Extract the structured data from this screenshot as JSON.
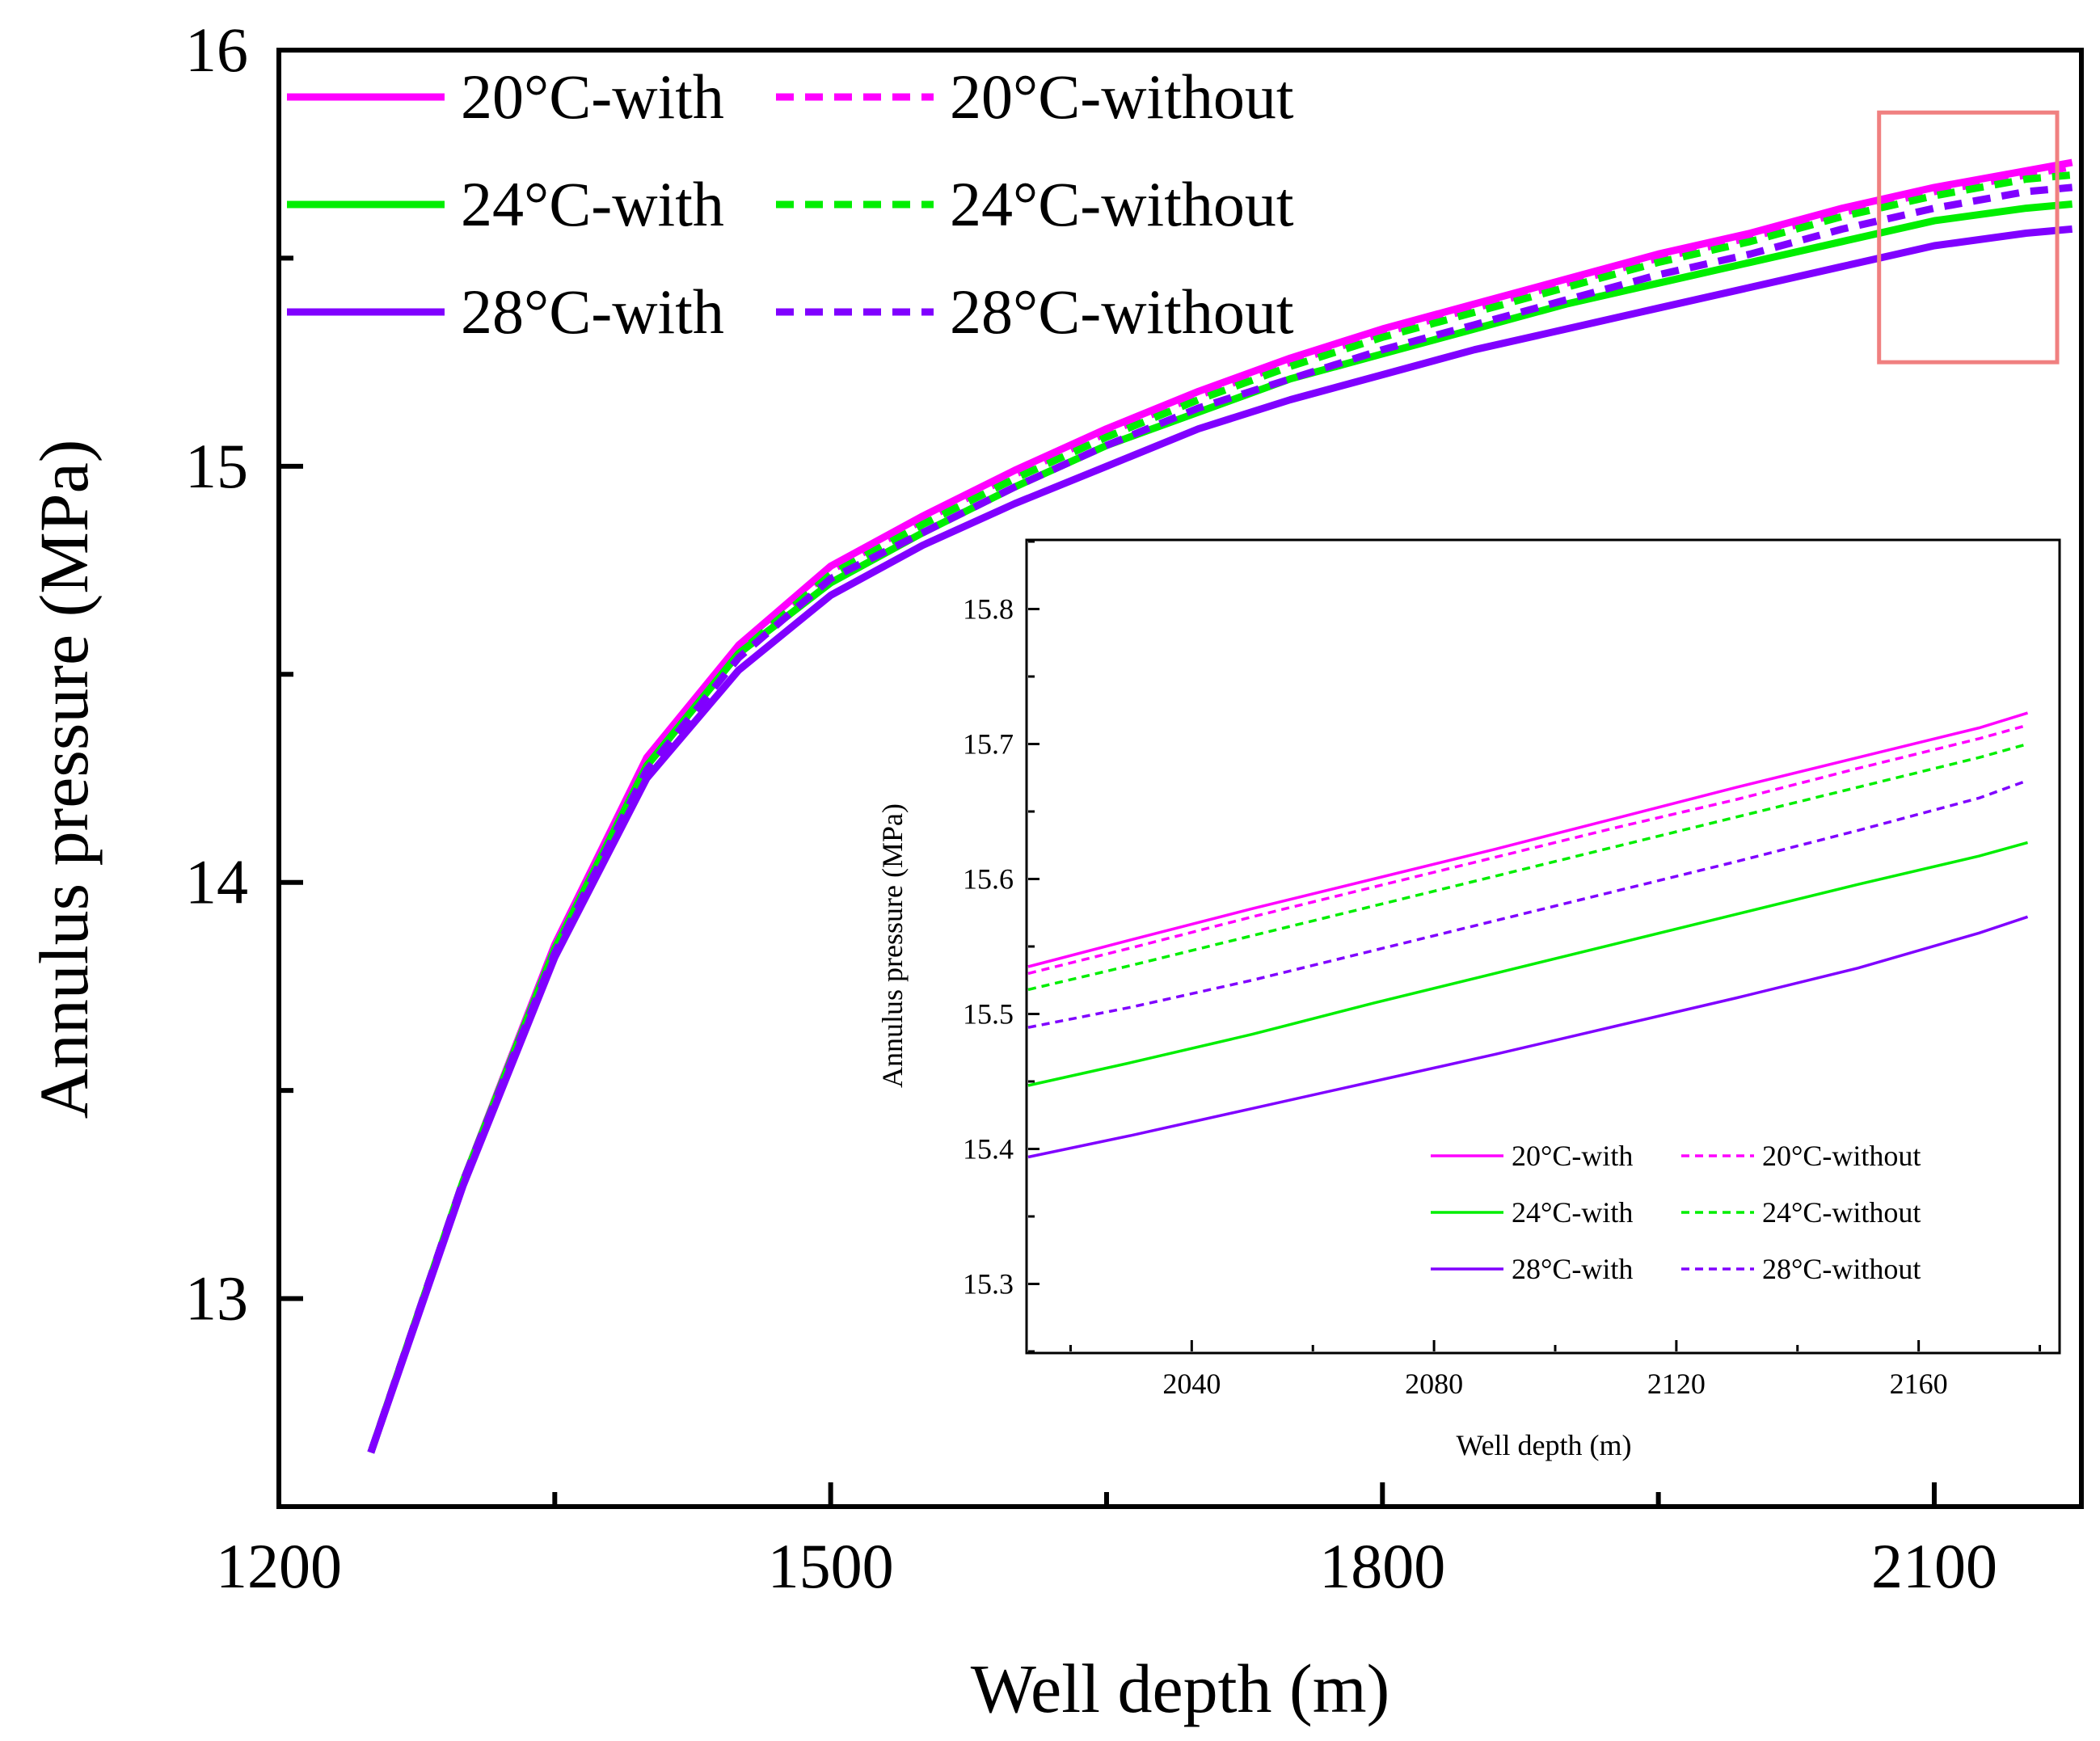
{
  "chart_data": [
    {
      "type": "line",
      "title": "",
      "xlabel": "Well depth (m)",
      "ylabel": "Annulus pressure (MPa)",
      "xlim": [
        1200,
        2180
      ],
      "ylim": [
        12.5,
        16.0
      ],
      "xticks": [
        1200,
        1500,
        1800,
        2100
      ],
      "xtick_labels": [
        "1200",
        "1500",
        "1800",
        "2100"
      ],
      "yticks": [
        13,
        14,
        15,
        16
      ],
      "ytick_labels": [
        "13",
        "14",
        "15",
        "16"
      ],
      "legend_position": "top-left",
      "x": [
        1250,
        1300,
        1350,
        1400,
        1450,
        1500,
        1550,
        1600,
        1650,
        1700,
        1750,
        1800,
        1850,
        1900,
        1950,
        2000,
        2050,
        2100,
        2150,
        2175
      ],
      "series": [
        {
          "name": "20°C-with",
          "color": "#ff00ff",
          "dash": "solid",
          "values": [
            12.63,
            13.28,
            13.85,
            14.3,
            14.57,
            14.76,
            14.88,
            14.99,
            15.09,
            15.18,
            15.26,
            15.33,
            15.39,
            15.45,
            15.51,
            15.56,
            15.62,
            15.67,
            15.71,
            15.73
          ]
        },
        {
          "name": "20°C-without",
          "color": "#ff00ff",
          "dash": "dashed",
          "values": [
            12.63,
            13.28,
            13.84,
            14.29,
            14.56,
            14.75,
            14.87,
            14.98,
            15.08,
            15.17,
            15.25,
            15.32,
            15.38,
            15.44,
            15.5,
            15.55,
            15.61,
            15.66,
            15.7,
            15.72
          ]
        },
        {
          "name": "24°C-with",
          "color": "#00ee00",
          "dash": "solid",
          "values": [
            12.63,
            13.28,
            13.84,
            14.28,
            14.55,
            14.72,
            14.84,
            14.95,
            15.05,
            15.13,
            15.21,
            15.27,
            15.33,
            15.39,
            15.44,
            15.49,
            15.54,
            15.59,
            15.62,
            15.63
          ]
        },
        {
          "name": "24°C-without",
          "color": "#00ee00",
          "dash": "dashed",
          "values": [
            12.63,
            13.28,
            13.84,
            14.28,
            14.55,
            14.74,
            14.86,
            14.97,
            15.07,
            15.16,
            15.24,
            15.31,
            15.37,
            15.43,
            15.49,
            15.54,
            15.6,
            15.65,
            15.69,
            15.7
          ]
        },
        {
          "name": "28°C-with",
          "color": "#8000ff",
          "dash": "solid",
          "values": [
            12.63,
            13.27,
            13.82,
            14.25,
            14.51,
            14.69,
            14.81,
            14.91,
            15.0,
            15.09,
            15.16,
            15.22,
            15.28,
            15.33,
            15.38,
            15.43,
            15.48,
            15.53,
            15.56,
            15.57
          ]
        },
        {
          "name": "28°C-without",
          "color": "#8000ff",
          "dash": "dashed",
          "values": [
            12.63,
            13.28,
            13.83,
            14.27,
            14.54,
            14.73,
            14.84,
            14.95,
            15.05,
            15.14,
            15.21,
            15.28,
            15.34,
            15.4,
            15.46,
            15.51,
            15.57,
            15.62,
            15.66,
            15.67
          ]
        }
      ],
      "highlight_region": {
        "x": [
          2070,
          2180
        ],
        "y": [
          15.25,
          15.85
        ],
        "color": "#f08080"
      }
    },
    {
      "type": "line",
      "title": "",
      "xlabel": "Well depth (m)",
      "ylabel": "Annulus pressure (MPa)",
      "xlim": [
        2013,
        2183
      ],
      "ylim": [
        15.25,
        15.85
      ],
      "xticks": [
        2040,
        2080,
        2120,
        2160
      ],
      "xtick_labels": [
        "2040",
        "2080",
        "2120",
        "2160"
      ],
      "yticks": [
        15.3,
        15.4,
        15.5,
        15.6,
        15.7,
        15.8
      ],
      "ytick_labels": [
        "15.3",
        "15.4",
        "15.5",
        "15.6",
        "15.7",
        "15.8"
      ],
      "legend_position": "bottom-right",
      "x": [
        2013,
        2030,
        2050,
        2070,
        2090,
        2110,
        2130,
        2150,
        2170,
        2178
      ],
      "series": [
        {
          "name": "20°C-with",
          "color": "#ff00ff",
          "dash": "solid",
          "values": [
            15.535,
            15.555,
            15.578,
            15.6,
            15.622,
            15.645,
            15.668,
            15.69,
            15.712,
            15.723
          ]
        },
        {
          "name": "20°C-without",
          "color": "#ff00ff",
          "dash": "dashed",
          "values": [
            15.53,
            15.549,
            15.572,
            15.594,
            15.616,
            15.638,
            15.659,
            15.682,
            15.704,
            15.714
          ]
        },
        {
          "name": "24°C-with",
          "color": "#00ee00",
          "dash": "solid",
          "values": [
            15.447,
            15.464,
            15.485,
            15.508,
            15.53,
            15.552,
            15.574,
            15.596,
            15.617,
            15.627
          ]
        },
        {
          "name": "24°C-without",
          "color": "#00ee00",
          "dash": "dashed",
          "values": [
            15.518,
            15.536,
            15.558,
            15.58,
            15.602,
            15.624,
            15.646,
            15.668,
            15.69,
            15.7
          ]
        },
        {
          "name": "28°C-with",
          "color": "#8000ff",
          "dash": "solid",
          "values": [
            15.394,
            15.41,
            15.43,
            15.45,
            15.47,
            15.491,
            15.512,
            15.534,
            15.56,
            15.572
          ]
        },
        {
          "name": "28°C-without",
          "color": "#8000ff",
          "dash": "dashed",
          "values": [
            15.49,
            15.505,
            15.525,
            15.547,
            15.569,
            15.591,
            15.613,
            15.636,
            15.66,
            15.673
          ]
        }
      ]
    }
  ]
}
